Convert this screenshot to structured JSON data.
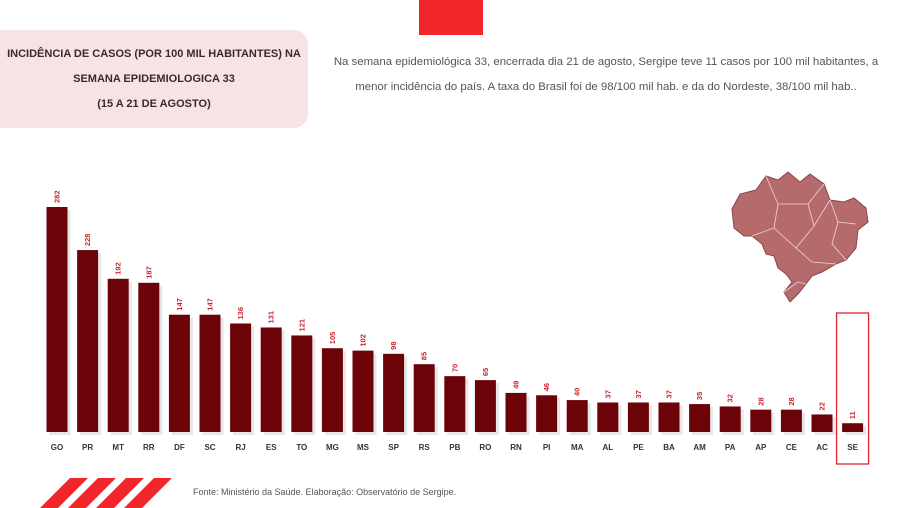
{
  "header": {
    "title": "INCIDÊNCIA  DE CASOS (POR 100 MIL HABITANTES) NA SEMANA EPIDEMIOLOGICA 33\n(15 A 21 DE AGOSTO)",
    "summary": "Na semana epidemiológica 33, encerrada dia 21 de agosto, Sergipe teve 11 casos por 100 mil habitantes, a menor incidência do país. A taxa do Brasil  foi de 98/100 mil hab. e da do Nordeste, 38/100 mil hab.."
  },
  "footer": {
    "source": "Fonte: Ministério da Saúde. Elaboração: Observatório de Sergipe."
  },
  "colors": {
    "bar": "#6b0309",
    "value_label": "#c8232a",
    "highlight_box": "#d9262c",
    "accent_red": "#f0262b",
    "map_fill": "#b56a6c"
  },
  "icons": {
    "map": "brazil-map-icon",
    "stripes": "red-stripes-decoration"
  },
  "chart_data": {
    "type": "bar",
    "title": "INCIDÊNCIA  DE CASOS (POR 100 MIL HABITANTES) NA SEMANA EPIDEMIOLOGICA 33\n(15 A 21 DE AGOSTO)",
    "xlabel": "",
    "ylabel": "",
    "categories": [
      "GO",
      "PR",
      "MT",
      "RR",
      "DF",
      "SC",
      "RJ",
      "ES",
      "TO",
      "MG",
      "MS",
      "SP",
      "RS",
      "PB",
      "RO",
      "RN",
      "PI",
      "MA",
      "AL",
      "PE",
      "BA",
      "AM",
      "PA",
      "AP",
      "CE",
      "AC",
      "SE"
    ],
    "values": [
      282,
      228,
      192,
      187,
      147,
      147,
      136,
      131,
      121,
      105,
      102,
      98,
      85,
      70,
      65,
      49,
      46,
      40,
      37,
      37,
      37,
      35,
      32,
      28,
      28,
      22,
      11
    ],
    "ylim": [
      0,
      282
    ],
    "grid": false,
    "data_labels": true,
    "highlight": "SE"
  }
}
